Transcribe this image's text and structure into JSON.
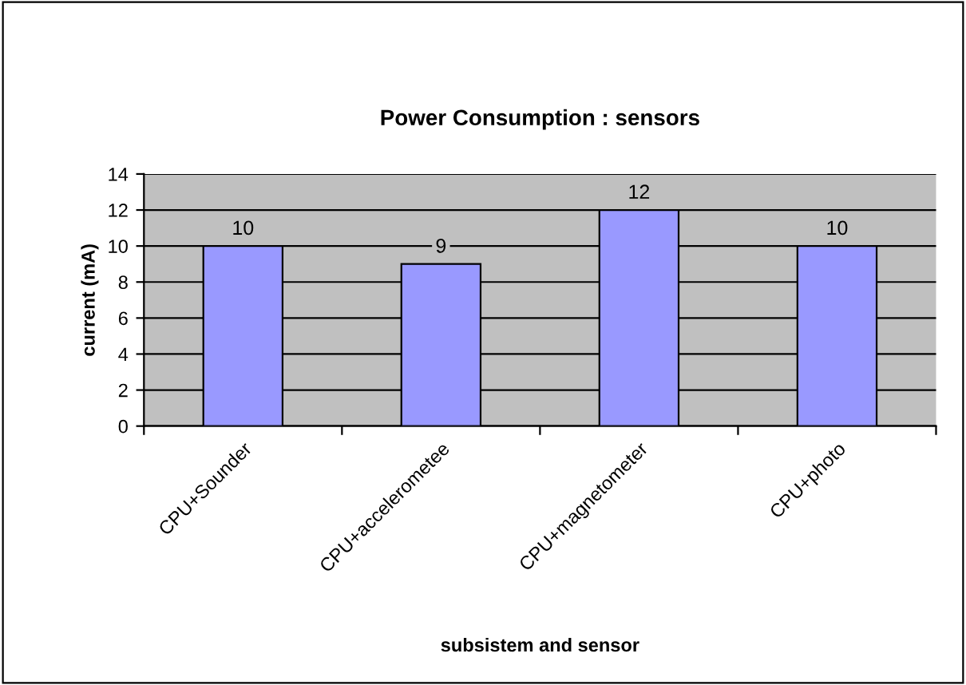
{
  "chart_data": {
    "type": "bar",
    "title": "Power Consumption : sensors",
    "xlabel": "subsistem and sensor",
    "ylabel": "current (mA)",
    "categories": [
      "CPU+Sounder",
      "CPU+accelerometee",
      "CPU+magnetometer",
      "CPU+photo"
    ],
    "values": [
      10,
      9,
      12,
      10
    ],
    "color": "#9999ff",
    "ylim": [
      0,
      14
    ],
    "yticks": [
      0,
      2,
      4,
      6,
      8,
      10,
      12,
      14
    ],
    "grid": "y",
    "data_labels": true,
    "legend": false
  }
}
